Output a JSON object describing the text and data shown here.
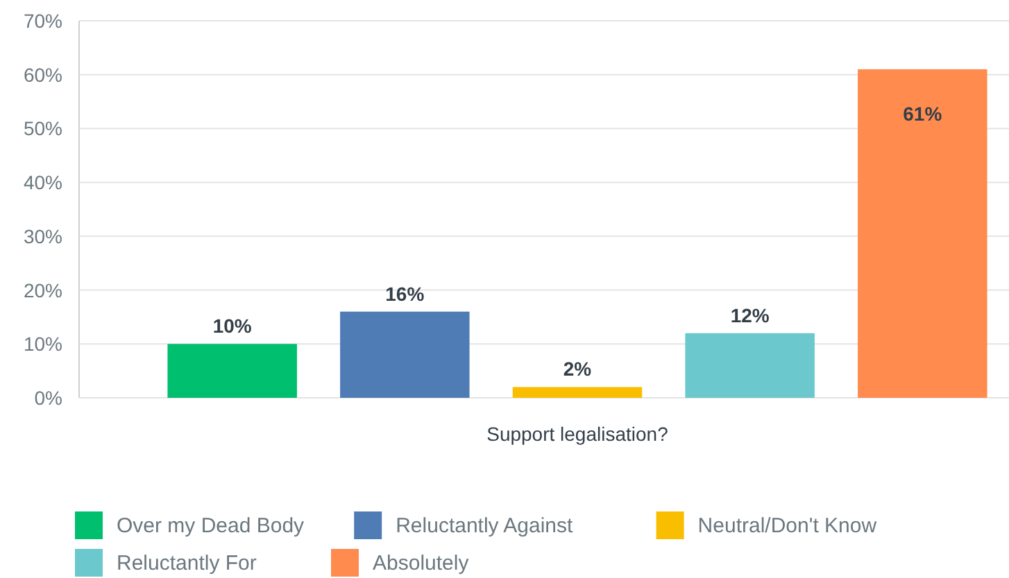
{
  "chart_data": {
    "type": "bar",
    "xlabel": "Support legalisation?",
    "categories": [
      null
    ],
    "series": [
      {
        "name": "Over my Dead Body",
        "color": "#00bf6f",
        "values": [
          10
        ],
        "value_labels": [
          "10%"
        ]
      },
      {
        "name": "Reluctantly Against",
        "color": "#507cb6",
        "values": [
          16
        ],
        "value_labels": [
          "16%"
        ]
      },
      {
        "name": "Neutral/Don't Know",
        "color": "#f9be00",
        "values": [
          2
        ],
        "value_labels": [
          "2%"
        ]
      },
      {
        "name": "Reluctantly For",
        "color": "#6bc8cd",
        "values": [
          12
        ],
        "value_labels": [
          "12%"
        ]
      },
      {
        "name": "Absolutely",
        "color": "#ff8b4f",
        "values": [
          61
        ],
        "value_labels": [
          "61%"
        ]
      }
    ],
    "ylim": [
      0,
      70
    ],
    "yticks": [
      {
        "value": 0,
        "label": "0%"
      },
      {
        "value": 10,
        "label": "10%"
      },
      {
        "value": 20,
        "label": "20%"
      },
      {
        "value": 30,
        "label": "30%"
      },
      {
        "value": 40,
        "label": "40%"
      },
      {
        "value": 50,
        "label": "50%"
      },
      {
        "value": 60,
        "label": "60%"
      },
      {
        "value": 70,
        "label": "70%"
      }
    ],
    "grid": "y",
    "legend": "bottom"
  }
}
